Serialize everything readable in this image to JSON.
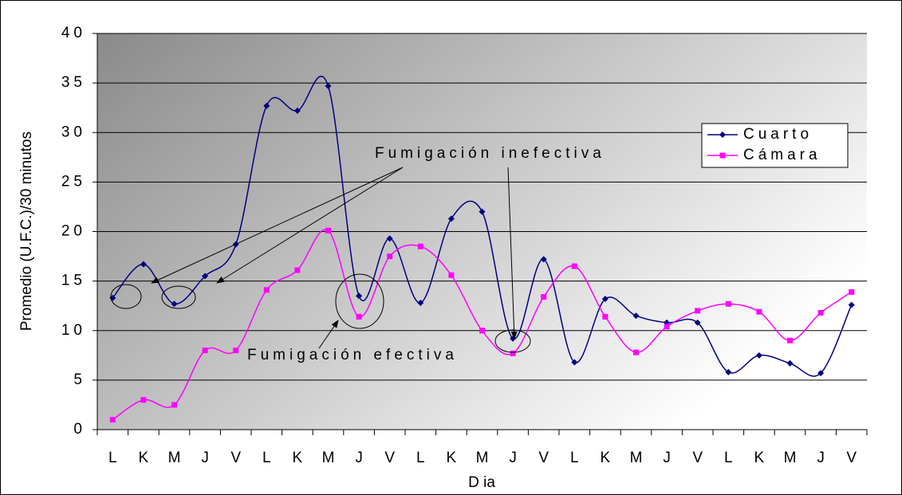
{
  "chart_data": {
    "type": "line",
    "ylabel": "Promedio (U.F.C.)/30 minutos",
    "xlabel": "D ia",
    "categories": [
      "L",
      "K",
      "M",
      "J",
      "V",
      "L",
      "K",
      "M",
      "J",
      "V",
      "L",
      "K",
      "M",
      "J",
      "V",
      "L",
      "K",
      "M",
      "J",
      "V",
      "L",
      "K",
      "M",
      "J",
      "V"
    ],
    "series": [
      {
        "name": "Cuarto",
        "color": "#000080",
        "values": [
          13.3,
          16.7,
          12.7,
          15.5,
          18.7,
          32.7,
          32.2,
          34.7,
          13.5,
          19.3,
          12.8,
          21.3,
          22.0,
          9.2,
          17.2,
          6.8,
          13.2,
          11.5,
          10.8,
          10.8,
          5.8,
          7.5,
          6.7,
          5.7,
          12.6
        ]
      },
      {
        "name": "Cámara",
        "color": "#ff00ff",
        "values": [
          1.0,
          3.0,
          2.5,
          8.0,
          8.0,
          14.1,
          16.1,
          20.1,
          11.4,
          17.5,
          18.5,
          15.6,
          10.0,
          7.7,
          13.4,
          16.5,
          11.4,
          7.8,
          10.4,
          12.0,
          12.7,
          11.9,
          9.0,
          11.8,
          13.9
        ]
      }
    ],
    "ylim": [
      0,
      40
    ],
    "yticks": [
      0,
      5,
      10,
      15,
      20,
      25,
      30,
      35,
      40
    ],
    "grid": true,
    "annotations": [
      "Fumigación inefectiva",
      "Fumigación efectiva"
    ]
  }
}
